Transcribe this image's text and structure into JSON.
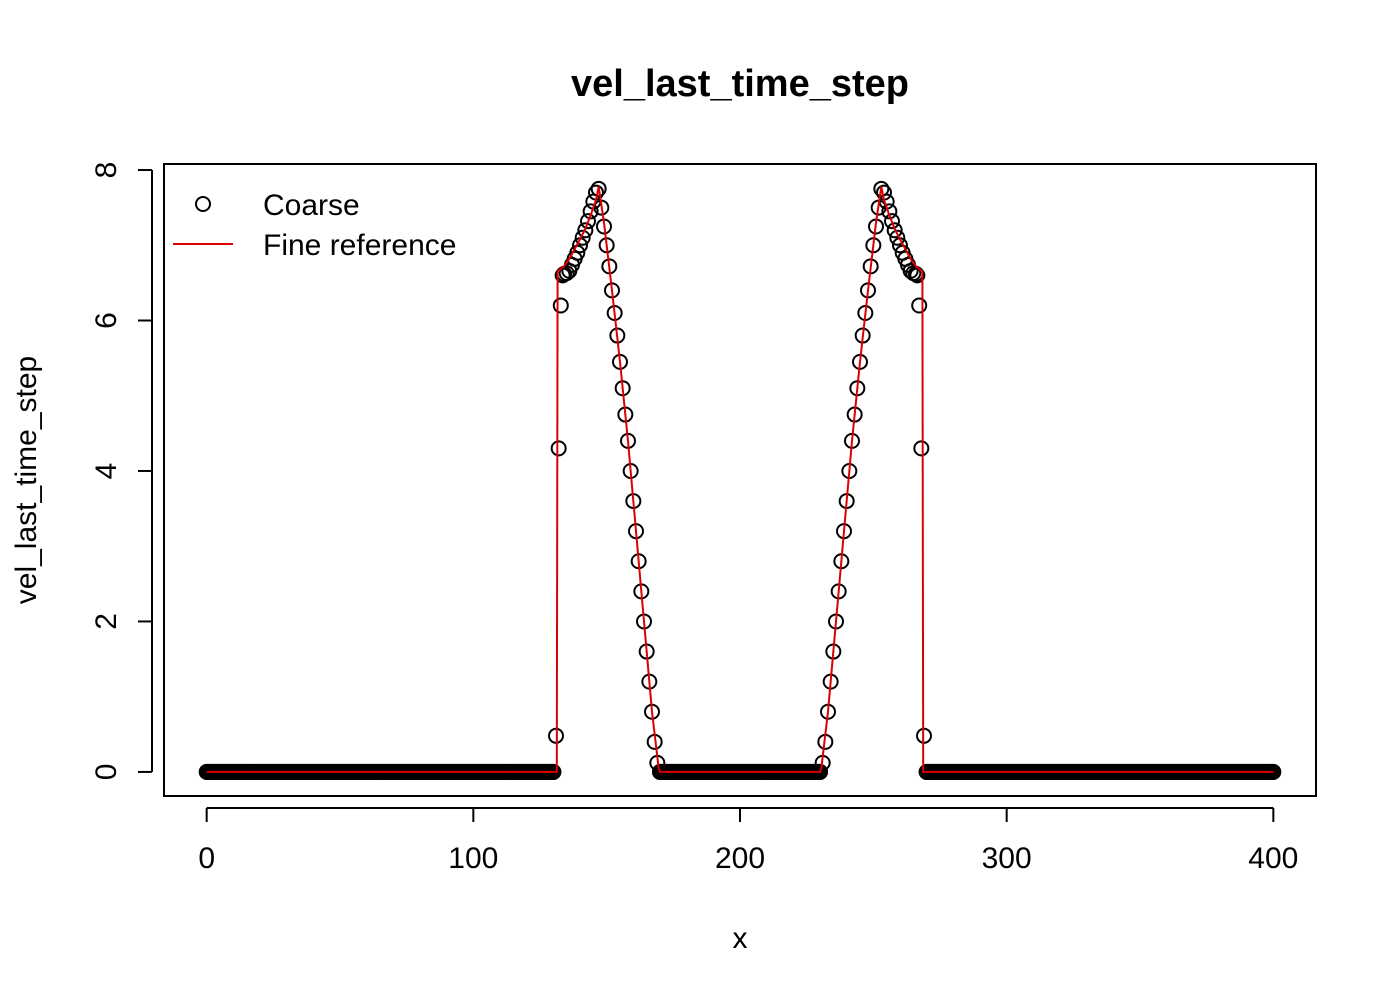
{
  "chart_data": {
    "type": "line",
    "title": "vel_last_time_step",
    "xlabel": "x",
    "ylabel": "vel_last_time_step",
    "xlim": [
      -16,
      416
    ],
    "ylim": [
      -0.32,
      8.08
    ],
    "xticks": [
      "0",
      "100",
      "200",
      "300",
      "400"
    ],
    "yticks": [
      "0",
      "2",
      "4",
      "6",
      "8"
    ],
    "grid": false,
    "legend_position": "top-left",
    "series": [
      {
        "name": "Coarse",
        "style": "points",
        "color": "#000000",
        "points": [
          [
            130,
            0.0
          ],
          [
            131,
            0.48
          ],
          [
            132,
            4.3
          ],
          [
            132.8,
            6.2
          ],
          [
            133.5,
            6.6
          ],
          [
            134,
            6.62
          ],
          [
            135,
            6.63
          ],
          [
            136,
            6.66
          ],
          [
            137,
            6.74
          ],
          [
            138,
            6.82
          ],
          [
            139,
            6.9
          ],
          [
            140,
            7.0
          ],
          [
            141,
            7.1
          ],
          [
            142,
            7.2
          ],
          [
            143,
            7.32
          ],
          [
            144,
            7.45
          ],
          [
            145,
            7.58
          ],
          [
            146,
            7.7
          ],
          [
            147,
            7.75
          ],
          [
            148,
            7.5
          ],
          [
            149,
            7.25
          ],
          [
            150,
            7.0
          ],
          [
            151,
            6.72
          ],
          [
            152,
            6.4
          ],
          [
            153,
            6.1
          ],
          [
            154,
            5.8
          ],
          [
            155,
            5.45
          ],
          [
            156,
            5.1
          ],
          [
            157,
            4.75
          ],
          [
            158,
            4.4
          ],
          [
            159,
            4.0
          ],
          [
            160,
            3.6
          ],
          [
            161,
            3.2
          ],
          [
            162,
            2.8
          ],
          [
            163,
            2.4
          ],
          [
            164,
            2.0
          ],
          [
            165,
            1.6
          ],
          [
            166,
            1.2
          ],
          [
            167,
            0.8
          ],
          [
            168,
            0.4
          ],
          [
            169,
            0.12
          ],
          [
            170,
            0.0
          ],
          [
            230,
            0.0
          ],
          [
            231,
            0.12
          ],
          [
            232,
            0.4
          ],
          [
            233,
            0.8
          ],
          [
            234,
            1.2
          ],
          [
            235,
            1.6
          ],
          [
            236,
            2.0
          ],
          [
            237,
            2.4
          ],
          [
            238,
            2.8
          ],
          [
            239,
            3.2
          ],
          [
            240,
            3.6
          ],
          [
            241,
            4.0
          ],
          [
            242,
            4.4
          ],
          [
            243,
            4.75
          ],
          [
            244,
            5.1
          ],
          [
            245,
            5.45
          ],
          [
            246,
            5.8
          ],
          [
            247,
            6.1
          ],
          [
            248,
            6.4
          ],
          [
            249,
            6.72
          ],
          [
            250,
            7.0
          ],
          [
            251,
            7.25
          ],
          [
            252,
            7.5
          ],
          [
            253,
            7.75
          ],
          [
            254,
            7.7
          ],
          [
            255,
            7.58
          ],
          [
            256,
            7.45
          ],
          [
            257,
            7.32
          ],
          [
            258,
            7.2
          ],
          [
            259,
            7.1
          ],
          [
            260,
            7.0
          ],
          [
            261,
            6.9
          ],
          [
            262,
            6.82
          ],
          [
            263,
            6.74
          ],
          [
            264,
            6.66
          ],
          [
            265,
            6.63
          ],
          [
            266,
            6.62
          ],
          [
            266.5,
            6.6
          ],
          [
            267.2,
            6.2
          ],
          [
            268,
            4.3
          ],
          [
            269,
            0.48
          ],
          [
            270,
            0.0
          ]
        ],
        "zero_runs": [
          [
            0,
            130
          ],
          [
            170,
            230
          ],
          [
            270,
            400
          ]
        ]
      },
      {
        "name": "Fine reference",
        "style": "line",
        "color": "#dd0000",
        "points": [
          [
            0,
            0
          ],
          [
            131.3,
            0
          ],
          [
            131.6,
            6.65
          ],
          [
            134,
            6.72
          ],
          [
            136,
            6.82
          ],
          [
            138,
            6.95
          ],
          [
            140,
            7.08
          ],
          [
            142,
            7.22
          ],
          [
            144,
            7.4
          ],
          [
            146,
            7.6
          ],
          [
            147,
            7.78
          ],
          [
            149,
            7.3
          ],
          [
            152,
            6.4
          ],
          [
            155,
            5.45
          ],
          [
            158,
            4.4
          ],
          [
            161,
            3.2
          ],
          [
            164,
            2.0
          ],
          [
            167,
            0.8
          ],
          [
            169.5,
            0.05
          ],
          [
            170,
            0
          ],
          [
            230,
            0
          ],
          [
            230.5,
            0.05
          ],
          [
            233,
            0.8
          ],
          [
            236,
            2.0
          ],
          [
            239,
            3.2
          ],
          [
            242,
            4.4
          ],
          [
            245,
            5.45
          ],
          [
            248,
            6.4
          ],
          [
            251,
            7.3
          ],
          [
            253,
            7.78
          ],
          [
            254,
            7.6
          ],
          [
            256,
            7.4
          ],
          [
            258,
            7.22
          ],
          [
            260,
            7.08
          ],
          [
            262,
            6.95
          ],
          [
            264,
            6.82
          ],
          [
            266,
            6.72
          ],
          [
            268.4,
            6.65
          ],
          [
            268.7,
            0
          ],
          [
            400,
            0
          ]
        ]
      }
    ]
  }
}
